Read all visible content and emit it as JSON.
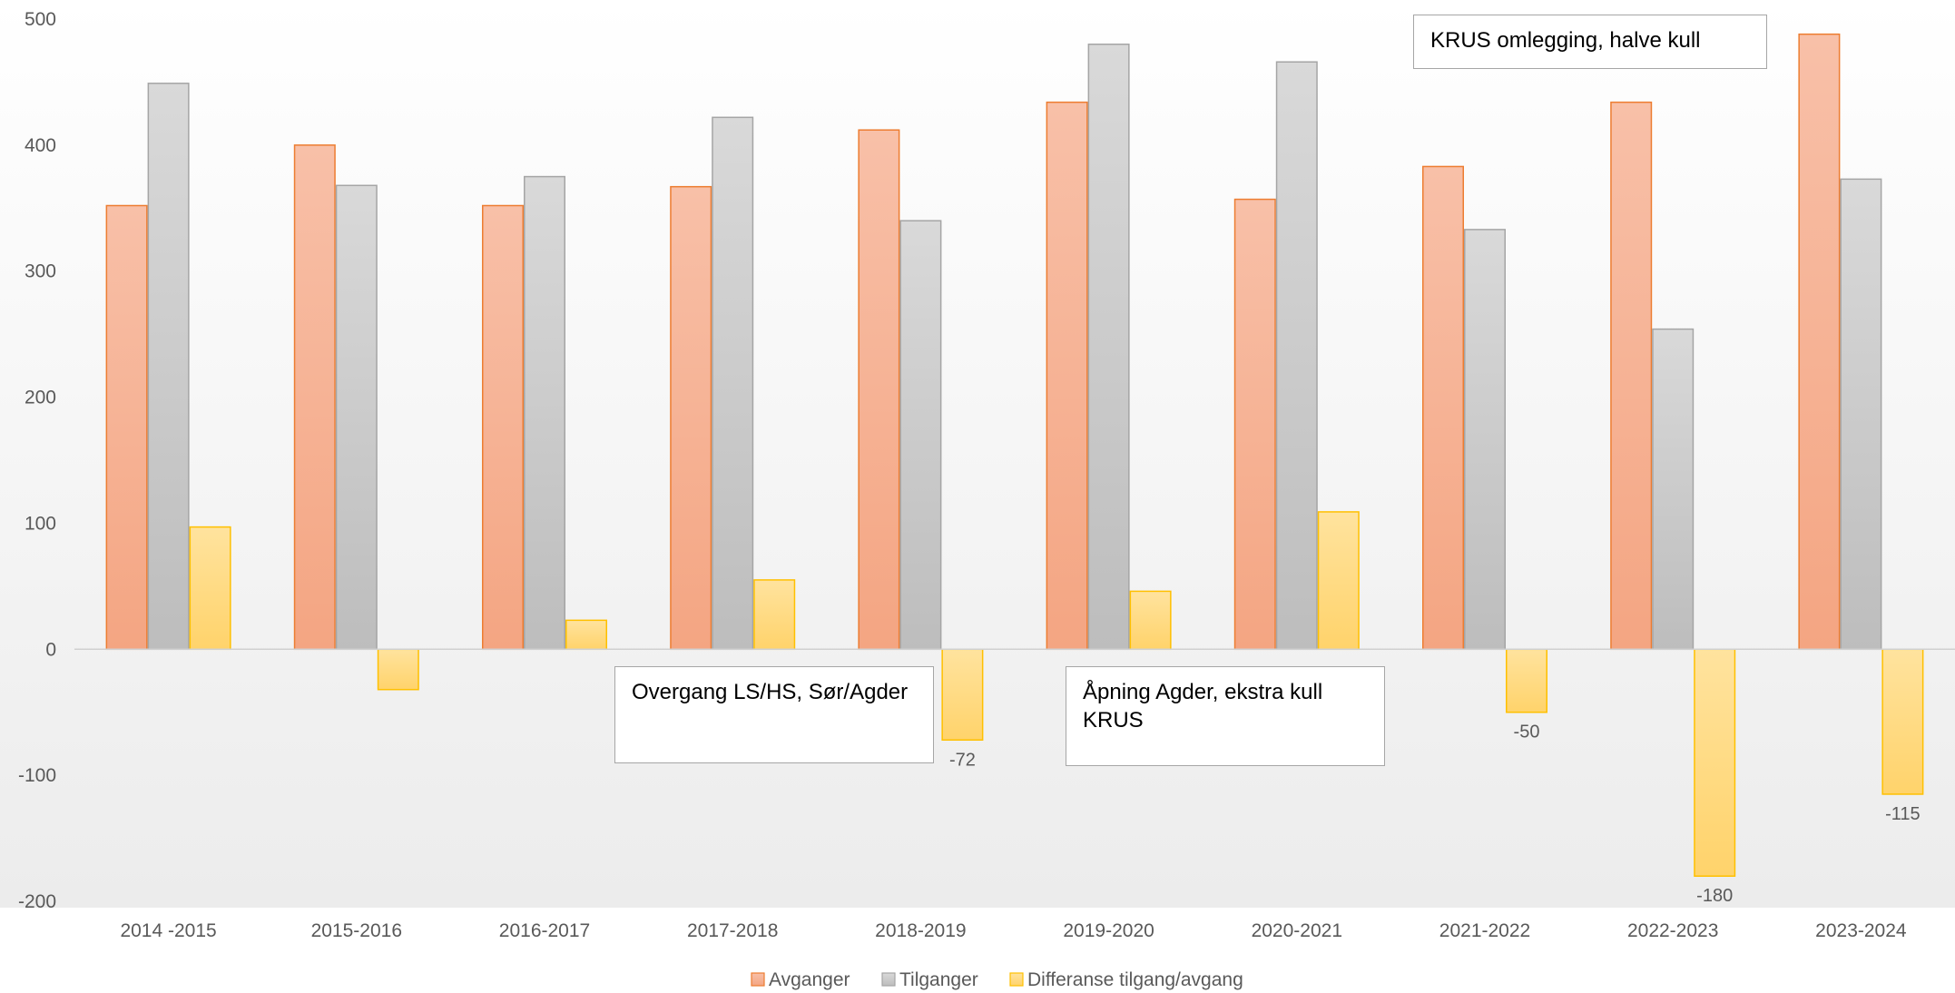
{
  "chart_data": {
    "type": "bar",
    "categories": [
      "2014 -2015",
      "2015-2016",
      "2016-2017",
      "2017-2018",
      "2018-2019",
      "2019-2020",
      "2020-2021",
      "2021-2022",
      "2022-2023",
      "2023-2024"
    ],
    "series": [
      {
        "name": "Avganger",
        "values": [
          352,
          400,
          352,
          367,
          412,
          434,
          357,
          383,
          434,
          488
        ],
        "color": "#f4a582"
      },
      {
        "name": "Tilganger",
        "values": [
          449,
          368,
          375,
          422,
          340,
          480,
          466,
          333,
          254,
          373
        ],
        "color": "#c8c8c8"
      },
      {
        "name": "Differanse tilgang/avgang",
        "values": [
          97,
          -32,
          23,
          55,
          -72,
          46,
          109,
          -50,
          -180,
          -115
        ],
        "color": "#ffd36b",
        "data_labels": {
          "4": "-72",
          "7": "-50",
          "8": "-180",
          "9": "-115"
        }
      }
    ],
    "ylim": [
      -200,
      500
    ],
    "yticks": [
      -200,
      -100,
      0,
      100,
      200,
      300,
      400,
      500
    ],
    "legend_position": "bottom",
    "grid": false,
    "annotations": [
      {
        "text": "KRUS omlegging, halve kull"
      },
      {
        "text": "Overgang LS/HS, Sør/Agder"
      },
      {
        "text": "Åpning Agder, ekstra kull KRUS"
      }
    ]
  }
}
